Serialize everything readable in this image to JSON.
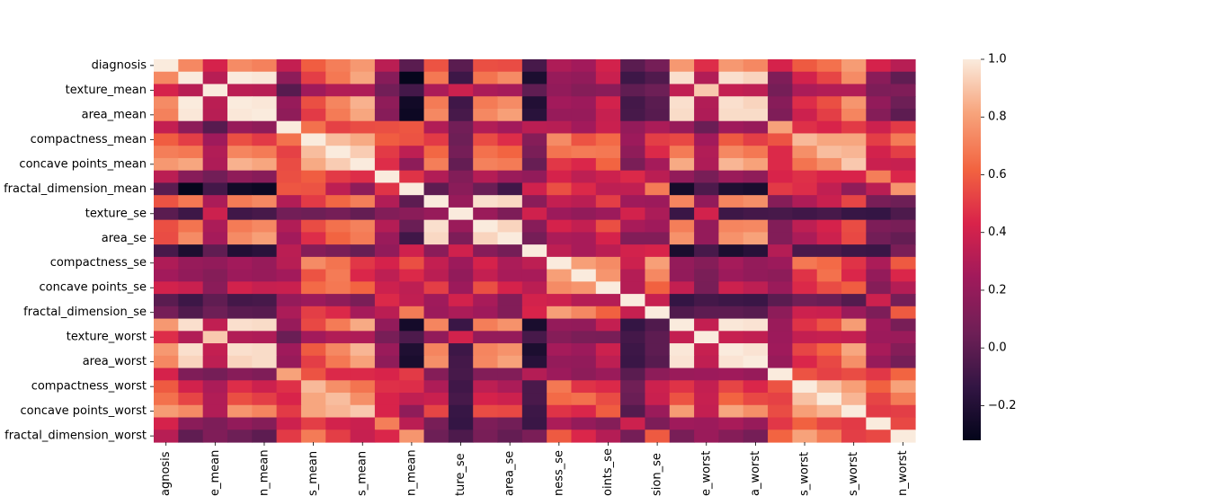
{
  "chart_data": {
    "type": "heatmap",
    "title": "",
    "xlabel": "",
    "ylabel": "",
    "row_labels": [
      "diagnosis",
      "",
      "texture_mean",
      "",
      "area_mean",
      "",
      "compactness_mean",
      "",
      "concave points_mean",
      "",
      "fractal_dimension_mean",
      "",
      "texture_se",
      "",
      "area_se",
      "",
      "compactness_se",
      "",
      "concave points_se",
      "",
      "fractal_dimension_se",
      "",
      "texture_worst",
      "",
      "area_worst",
      "",
      "compactness_worst",
      "",
      "concave points_worst",
      "",
      "fractal_dimension_worst"
    ],
    "col_labels": [
      "diagnosis",
      "",
      "texture_mean",
      "",
      "area_mean",
      "",
      "compactness_mean",
      "",
      "concave points_mean",
      "",
      "fractal_dimension_mean",
      "",
      "texture_se",
      "",
      "area_se",
      "",
      "compactness_se",
      "",
      "concave points_se",
      "",
      "fractal_dimension_se",
      "",
      "texture_worst",
      "",
      "area_worst",
      "",
      "compactness_worst",
      "",
      "concave points_worst",
      "",
      "fractal_dimension_worst"
    ],
    "col_labels_visible": [
      "agnosis",
      "e_mean",
      "n_mean",
      "s_mean",
      "s_mean",
      "n_mean",
      "ture_se",
      "area_se",
      "ness_se",
      "oints_se",
      "sion_se",
      "e_worst",
      "a_worst",
      "s_worst",
      "s_worst",
      "n_worst"
    ],
    "colorbar": {
      "min": -0.32,
      "max": 1.0,
      "ticks": [
        1.0,
        0.8,
        0.6,
        0.4,
        0.2,
        0.0,
        -0.2
      ],
      "tick_labels": [
        "1.0",
        "0.8",
        "0.6",
        "0.4",
        "0.2",
        "0.0",
        "−0.2"
      ]
    },
    "values": [
      [
        1.0,
        0.73,
        0.42,
        0.74,
        0.71,
        0.36,
        0.6,
        0.7,
        0.78,
        0.33,
        -0.01,
        0.57,
        -0.01,
        0.56,
        0.55,
        -0.07,
        0.29,
        0.25,
        0.41,
        -0.01,
        0.08,
        0.78,
        0.46,
        0.78,
        0.73,
        0.42,
        0.59,
        0.66,
        0.79,
        0.42,
        0.32
      ],
      [
        0.73,
        1.0,
        0.32,
        1.0,
        0.99,
        0.17,
        0.51,
        0.68,
        0.82,
        0.15,
        -0.31,
        0.68,
        -0.1,
        0.67,
        0.74,
        -0.22,
        0.21,
        0.19,
        0.38,
        -0.1,
        -0.04,
        0.97,
        0.3,
        0.97,
        0.94,
        0.12,
        0.41,
        0.53,
        0.74,
        0.16,
        0.01
      ],
      [
        0.42,
        0.32,
        1.0,
        0.33,
        0.32,
        -0.02,
        0.24,
        0.3,
        0.29,
        0.07,
        -0.08,
        0.28,
        0.39,
        0.28,
        0.26,
        0.01,
        0.19,
        0.14,
        0.16,
        0.01,
        0.05,
        0.35,
        0.91,
        0.36,
        0.34,
        0.08,
        0.28,
        0.3,
        0.3,
        0.11,
        0.12
      ],
      [
        0.74,
        1.0,
        0.33,
        1.0,
        0.99,
        0.21,
        0.56,
        0.72,
        0.85,
        0.18,
        -0.26,
        0.69,
        -0.09,
        0.69,
        0.74,
        -0.2,
        0.25,
        0.23,
        0.41,
        -0.08,
        -0.01,
        0.97,
        0.3,
        0.97,
        0.94,
        0.15,
        0.46,
        0.56,
        0.77,
        0.19,
        0.05
      ],
      [
        0.71,
        0.99,
        0.32,
        0.99,
        1.0,
        0.18,
        0.5,
        0.69,
        0.82,
        0.15,
        -0.28,
        0.73,
        -0.07,
        0.73,
        0.8,
        -0.17,
        0.21,
        0.21,
        0.37,
        -0.07,
        -0.02,
        0.96,
        0.29,
        0.96,
        0.96,
        0.12,
        0.39,
        0.51,
        0.72,
        0.14,
        0.0
      ],
      [
        0.36,
        0.17,
        -0.02,
        0.21,
        0.18,
        1.0,
        0.66,
        0.52,
        0.55,
        0.56,
        0.58,
        0.3,
        0.07,
        0.3,
        0.25,
        0.33,
        0.32,
        0.25,
        0.38,
        0.2,
        0.28,
        0.21,
        0.04,
        0.24,
        0.21,
        0.81,
        0.47,
        0.43,
        0.5,
        0.39,
        0.5
      ],
      [
        0.6,
        0.51,
        0.24,
        0.56,
        0.5,
        0.66,
        1.0,
        0.88,
        0.83,
        0.6,
        0.57,
        0.5,
        0.05,
        0.55,
        0.46,
        0.14,
        0.74,
        0.57,
        0.64,
        0.23,
        0.51,
        0.54,
        0.25,
        0.59,
        0.51,
        0.57,
        0.87,
        0.82,
        0.82,
        0.51,
        0.69
      ],
      [
        0.7,
        0.68,
        0.3,
        0.72,
        0.69,
        0.52,
        0.88,
        1.0,
        0.92,
        0.5,
        0.34,
        0.63,
        0.08,
        0.66,
        0.62,
        0.1,
        0.67,
        0.69,
        0.68,
        0.18,
        0.45,
        0.69,
        0.3,
        0.73,
        0.68,
        0.45,
        0.75,
        0.88,
        0.86,
        0.41,
        0.51
      ],
      [
        0.78,
        0.82,
        0.29,
        0.85,
        0.82,
        0.55,
        0.83,
        0.92,
        1.0,
        0.46,
        0.17,
        0.7,
        0.02,
        0.71,
        0.69,
        0.03,
        0.49,
        0.44,
        0.62,
        0.1,
        0.26,
        0.83,
        0.29,
        0.86,
        0.81,
        0.45,
        0.67,
        0.75,
        0.91,
        0.38,
        0.37
      ],
      [
        0.33,
        0.15,
        0.07,
        0.18,
        0.15,
        0.56,
        0.6,
        0.5,
        0.46,
        1.0,
        0.48,
        0.3,
        0.13,
        0.31,
        0.22,
        0.19,
        0.42,
        0.34,
        0.39,
        0.45,
        0.33,
        0.19,
        0.09,
        0.22,
        0.18,
        0.43,
        0.47,
        0.43,
        0.43,
        0.7,
        0.44
      ],
      [
        -0.01,
        -0.31,
        -0.08,
        -0.26,
        -0.28,
        0.58,
        0.57,
        0.34,
        0.17,
        0.48,
        1.0,
        0.0,
        0.16,
        0.04,
        -0.09,
        0.4,
        0.56,
        0.45,
        0.34,
        0.35,
        0.69,
        -0.25,
        -0.05,
        -0.21,
        -0.23,
        0.5,
        0.46,
        0.35,
        0.18,
        0.33,
        0.77
      ],
      [
        0.57,
        0.68,
        0.28,
        0.69,
        0.73,
        0.3,
        0.5,
        0.63,
        0.7,
        0.3,
        0.0,
        1.0,
        0.21,
        0.97,
        0.95,
        0.16,
        0.36,
        0.33,
        0.51,
        0.24,
        0.23,
        0.72,
        0.19,
        0.72,
        0.75,
        0.14,
        0.29,
        0.38,
        0.53,
        0.09,
        0.05
      ],
      [
        -0.01,
        -0.1,
        0.39,
        -0.09,
        -0.07,
        0.07,
        0.05,
        0.08,
        0.02,
        0.13,
        0.16,
        0.21,
        1.0,
        0.22,
        0.11,
        0.4,
        0.23,
        0.19,
        0.23,
        0.41,
        0.28,
        -0.11,
        0.41,
        -0.1,
        -0.08,
        -0.07,
        -0.09,
        -0.07,
        -0.12,
        -0.13,
        -0.05
      ],
      [
        0.56,
        0.67,
        0.28,
        0.69,
        0.73,
        0.3,
        0.55,
        0.66,
        0.71,
        0.31,
        0.04,
        0.97,
        0.22,
        1.0,
        0.94,
        0.15,
        0.42,
        0.36,
        0.56,
        0.27,
        0.24,
        0.7,
        0.2,
        0.72,
        0.73,
        0.13,
        0.34,
        0.42,
        0.55,
        0.11,
        0.09
      ],
      [
        0.55,
        0.74,
        0.26,
        0.74,
        0.8,
        0.25,
        0.46,
        0.62,
        0.69,
        0.22,
        -0.09,
        0.95,
        0.11,
        0.94,
        1.0,
        0.08,
        0.28,
        0.27,
        0.42,
        0.13,
        0.13,
        0.76,
        0.2,
        0.76,
        0.81,
        0.13,
        0.28,
        0.39,
        0.54,
        0.07,
        0.02
      ],
      [
        -0.07,
        -0.22,
        0.01,
        -0.2,
        -0.17,
        0.33,
        0.14,
        0.1,
        0.03,
        0.19,
        0.4,
        0.16,
        0.4,
        0.15,
        0.08,
        1.0,
        0.34,
        0.27,
        0.33,
        0.41,
        0.43,
        -0.23,
        -0.07,
        -0.22,
        -0.18,
        0.31,
        -0.06,
        -0.06,
        -0.1,
        -0.11,
        0.1
      ],
      [
        0.29,
        0.21,
        0.19,
        0.25,
        0.21,
        0.32,
        0.74,
        0.67,
        0.49,
        0.42,
        0.56,
        0.36,
        0.23,
        0.42,
        0.28,
        0.34,
        1.0,
        0.8,
        0.74,
        0.39,
        0.8,
        0.2,
        0.14,
        0.26,
        0.2,
        0.23,
        0.68,
        0.64,
        0.48,
        0.28,
        0.59
      ],
      [
        0.25,
        0.19,
        0.14,
        0.23,
        0.21,
        0.25,
        0.57,
        0.69,
        0.44,
        0.34,
        0.45,
        0.33,
        0.19,
        0.36,
        0.27,
        0.27,
        0.8,
        1.0,
        0.77,
        0.31,
        0.73,
        0.19,
        0.1,
        0.23,
        0.19,
        0.17,
        0.48,
        0.66,
        0.44,
        0.2,
        0.44
      ],
      [
        0.41,
        0.38,
        0.16,
        0.41,
        0.37,
        0.38,
        0.64,
        0.68,
        0.62,
        0.39,
        0.34,
        0.51,
        0.23,
        0.56,
        0.42,
        0.33,
        0.74,
        0.77,
        1.0,
        0.31,
        0.61,
        0.36,
        0.09,
        0.39,
        0.34,
        0.22,
        0.45,
        0.55,
        0.6,
        0.14,
        0.31
      ],
      [
        -0.01,
        -0.1,
        0.01,
        -0.08,
        -0.07,
        0.2,
        0.23,
        0.18,
        0.1,
        0.45,
        0.35,
        0.24,
        0.41,
        0.27,
        0.13,
        0.41,
        0.39,
        0.31,
        0.31,
        1.0,
        0.37,
        -0.13,
        -0.08,
        -0.1,
        -0.11,
        -0.01,
        0.06,
        0.04,
        -0.03,
        0.39,
        0.08
      ],
      [
        0.08,
        -0.04,
        0.05,
        -0.01,
        -0.02,
        0.28,
        0.51,
        0.45,
        0.26,
        0.33,
        0.69,
        0.23,
        0.28,
        0.24,
        0.13,
        0.43,
        0.8,
        0.73,
        0.61,
        0.37,
        1.0,
        -0.04,
        -0.0,
        -0.0,
        -0.02,
        0.17,
        0.39,
        0.38,
        0.22,
        0.11,
        0.59
      ],
      [
        0.78,
        0.97,
        0.35,
        0.97,
        0.96,
        0.21,
        0.54,
        0.69,
        0.83,
        0.19,
        -0.25,
        0.72,
        -0.11,
        0.7,
        0.76,
        -0.23,
        0.2,
        0.19,
        0.36,
        -0.13,
        -0.04,
        1.0,
        0.36,
        0.99,
        0.98,
        0.22,
        0.48,
        0.57,
        0.79,
        0.24,
        0.09
      ],
      [
        0.46,
        0.3,
        0.91,
        0.3,
        0.29,
        0.04,
        0.25,
        0.3,
        0.29,
        0.09,
        -0.05,
        0.19,
        0.41,
        0.2,
        0.2,
        -0.07,
        0.14,
        0.1,
        0.09,
        -0.08,
        -0.0,
        0.36,
        1.0,
        0.37,
        0.35,
        0.23,
        0.36,
        0.37,
        0.36,
        0.23,
        0.22
      ],
      [
        0.78,
        0.97,
        0.36,
        0.97,
        0.96,
        0.24,
        0.59,
        0.73,
        0.86,
        0.22,
        -0.21,
        0.72,
        -0.1,
        0.72,
        0.76,
        -0.22,
        0.26,
        0.23,
        0.39,
        -0.1,
        -0.0,
        0.99,
        0.37,
        1.0,
        0.98,
        0.24,
        0.53,
        0.62,
        0.82,
        0.27,
        0.14
      ],
      [
        0.73,
        0.94,
        0.34,
        0.94,
        0.96,
        0.21,
        0.51,
        0.68,
        0.81,
        0.18,
        -0.23,
        0.75,
        -0.08,
        0.73,
        0.81,
        -0.18,
        0.2,
        0.19,
        0.34,
        -0.11,
        -0.02,
        0.98,
        0.35,
        0.98,
        1.0,
        0.21,
        0.44,
        0.54,
        0.75,
        0.21,
        0.08
      ],
      [
        0.42,
        0.12,
        0.08,
        0.15,
        0.12,
        0.81,
        0.57,
        0.45,
        0.45,
        0.43,
        0.5,
        0.14,
        -0.07,
        0.13,
        0.13,
        0.31,
        0.23,
        0.17,
        0.22,
        -0.01,
        0.17,
        0.22,
        0.23,
        0.24,
        0.21,
        1.0,
        0.57,
        0.52,
        0.55,
        0.49,
        0.62
      ],
      [
        0.59,
        0.41,
        0.28,
        0.46,
        0.39,
        0.47,
        0.87,
        0.75,
        0.67,
        0.47,
        0.46,
        0.29,
        -0.09,
        0.34,
        0.28,
        -0.06,
        0.68,
        0.48,
        0.45,
        0.06,
        0.39,
        0.48,
        0.36,
        0.53,
        0.44,
        0.57,
        1.0,
        0.89,
        0.8,
        0.61,
        0.81
      ],
      [
        0.66,
        0.53,
        0.3,
        0.56,
        0.51,
        0.43,
        0.82,
        0.88,
        0.75,
        0.43,
        0.35,
        0.38,
        -0.07,
        0.42,
        0.39,
        -0.06,
        0.64,
        0.66,
        0.55,
        0.04,
        0.38,
        0.57,
        0.37,
        0.62,
        0.54,
        0.52,
        0.89,
        1.0,
        0.86,
        0.53,
        0.69
      ],
      [
        0.79,
        0.74,
        0.3,
        0.77,
        0.72,
        0.5,
        0.82,
        0.86,
        0.91,
        0.43,
        0.18,
        0.53,
        -0.12,
        0.55,
        0.54,
        -0.1,
        0.48,
        0.44,
        0.6,
        -0.03,
        0.22,
        0.79,
        0.36,
        0.82,
        0.75,
        0.55,
        0.8,
        0.86,
        1.0,
        0.5,
        0.51
      ],
      [
        0.42,
        0.16,
        0.11,
        0.19,
        0.14,
        0.39,
        0.51,
        0.41,
        0.38,
        0.7,
        0.33,
        0.09,
        -0.13,
        0.11,
        0.07,
        -0.11,
        0.28,
        0.2,
        0.14,
        0.39,
        0.11,
        0.24,
        0.23,
        0.27,
        0.21,
        0.49,
        0.61,
        0.53,
        0.5,
        1.0,
        0.54
      ],
      [
        0.32,
        0.01,
        0.12,
        0.05,
        0.0,
        0.5,
        0.69,
        0.51,
        0.37,
        0.44,
        0.77,
        0.05,
        -0.05,
        0.09,
        0.02,
        0.1,
        0.59,
        0.44,
        0.31,
        0.08,
        0.59,
        0.09,
        0.22,
        0.14,
        0.08,
        0.62,
        0.81,
        0.69,
        0.51,
        0.54,
        1.0
      ]
    ]
  }
}
